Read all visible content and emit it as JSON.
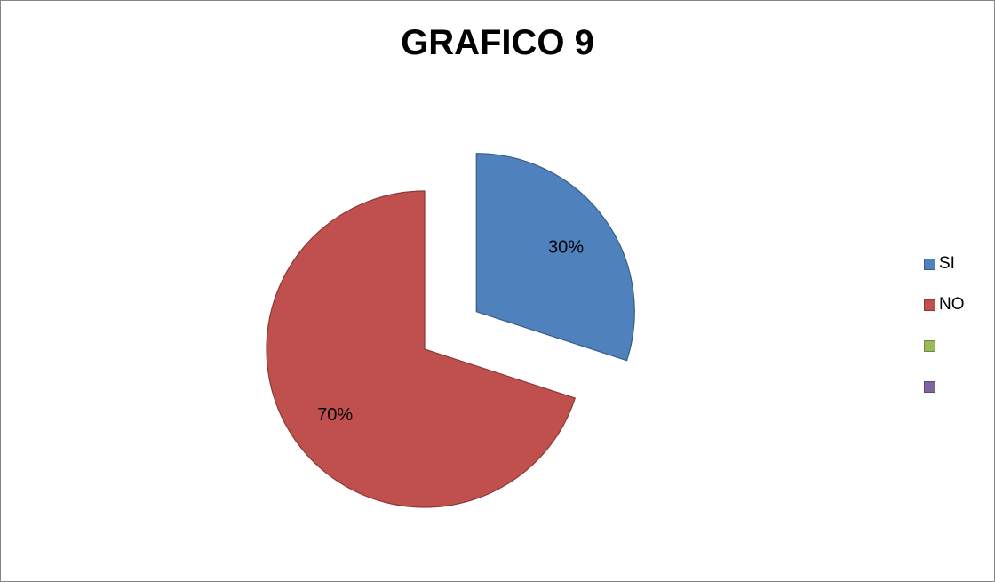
{
  "chart_data": {
    "type": "pie",
    "title": "GRAFICO 9",
    "slices": [
      {
        "name": "SI",
        "value": 30,
        "label": "30%",
        "color": "#4f81bd",
        "stroke": "#385d8a",
        "exploded": true
      },
      {
        "name": "NO",
        "value": 70,
        "label": "70%",
        "color": "#c0504d",
        "stroke": "#8c3836",
        "exploded": false
      }
    ],
    "legend": {
      "placement": "right",
      "entries": [
        {
          "name": "SI",
          "color": "#4f81bd",
          "stroke": "#385d8a"
        },
        {
          "name": "NO",
          "color": "#c0504d",
          "stroke": "#8c3836"
        },
        {
          "name": "",
          "color": "#9bbb59",
          "stroke": "#71893f"
        },
        {
          "name": "",
          "color": "#8064a2",
          "stroke": "#5c4776"
        }
      ]
    }
  }
}
